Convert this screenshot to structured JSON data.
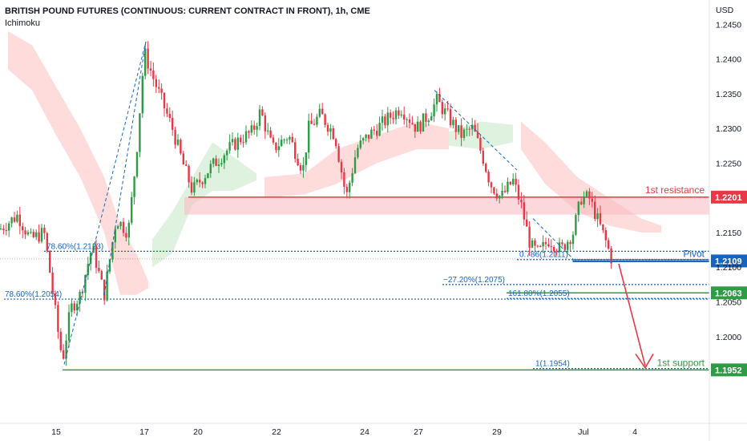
{
  "header": {
    "title": "BRITISH POUND FUTURES (CONTINUOUS: CURRENT CONTRACT IN FRONT), 1h, CME",
    "indicator": "Ichimoku"
  },
  "chart_data": {
    "type": "candlestick",
    "currency_label": "USD",
    "ylim": [
      1.1875,
      1.2485
    ],
    "y_ticks": [
      "1.2450",
      "1.2400",
      "1.2350",
      "1.2300",
      "1.2250",
      "1.2150",
      "1.2100",
      "1.2050",
      "1.2000"
    ],
    "x_ticks": [
      "15",
      "17",
      "20",
      "22",
      "24",
      "27",
      "29",
      "Jul",
      "4"
    ],
    "price_path": [
      [
        0,
        1.2155
      ],
      [
        22,
        1.2175
      ],
      [
        38,
        1.214
      ],
      [
        55,
        1.215
      ],
      [
        62,
        1.2095
      ],
      [
        72,
        1.201
      ],
      [
        78,
        1.1965
      ],
      [
        88,
        1.204
      ],
      [
        100,
        1.206
      ],
      [
        115,
        1.213
      ],
      [
        130,
        1.206
      ],
      [
        145,
        1.217
      ],
      [
        160,
        1.215
      ],
      [
        170,
        1.226
      ],
      [
        180,
        1.241
      ],
      [
        192,
        1.237
      ],
      [
        205,
        1.233
      ],
      [
        215,
        1.23
      ],
      [
        228,
        1.225
      ],
      [
        240,
        1.221
      ],
      [
        260,
        1.224
      ],
      [
        280,
        1.2265
      ],
      [
        300,
        1.2285
      ],
      [
        315,
        1.2295
      ],
      [
        325,
        1.2325
      ],
      [
        340,
        1.227
      ],
      [
        360,
        1.229
      ],
      [
        378,
        1.224
      ],
      [
        385,
        1.23
      ],
      [
        400,
        1.232
      ],
      [
        418,
        1.229
      ],
      [
        432,
        1.22
      ],
      [
        445,
        1.227
      ],
      [
        460,
        1.229
      ],
      [
        480,
        1.231
      ],
      [
        500,
        1.233
      ],
      [
        520,
        1.23
      ],
      [
        535,
        1.232
      ],
      [
        545,
        1.234
      ],
      [
        560,
        1.2315
      ],
      [
        575,
        1.229
      ],
      [
        590,
        1.23
      ],
      [
        602,
        1.226
      ],
      [
        612,
        1.222
      ],
      [
        625,
        1.22
      ],
      [
        640,
        1.2225
      ],
      [
        650,
        1.219
      ],
      [
        662,
        1.213
      ],
      [
        672,
        1.212
      ],
      [
        685,
        1.214
      ],
      [
        700,
        1.2125
      ],
      [
        715,
        1.215
      ],
      [
        725,
        1.22
      ],
      [
        735,
        1.22
      ],
      [
        745,
        1.217
      ],
      [
        755,
        1.214
      ],
      [
        763,
        1.2112
      ]
    ],
    "ichimoku_cloud_bearish": [
      [
        10,
        1.244,
        1.2385
      ],
      [
        40,
        1.242,
        1.2355
      ],
      [
        70,
        1.236,
        1.229
      ],
      [
        100,
        1.23,
        1.223
      ],
      [
        130,
        1.223,
        1.215
      ],
      [
        150,
        1.216,
        1.206
      ],
      [
        170,
        1.212,
        1.206
      ],
      [
        185,
        1.208,
        1.207
      ]
    ],
    "ichimoku_cloud_bullish": [
      [
        190,
        1.214,
        1.21
      ],
      [
        215,
        1.218,
        1.212
      ],
      [
        240,
        1.223,
        1.219
      ],
      [
        265,
        1.228,
        1.221
      ],
      [
        290,
        1.226,
        1.221
      ],
      [
        320,
        1.2235,
        1.2225
      ]
    ],
    "ichimoku_cloud_bearish_2": [
      [
        330,
        1.223,
        1.22
      ],
      [
        380,
        1.2235,
        1.2205
      ],
      [
        420,
        1.227,
        1.222
      ],
      [
        470,
        1.229,
        1.225
      ],
      [
        520,
        1.231,
        1.227
      ],
      [
        560,
        1.23,
        1.227
      ]
    ],
    "ichimoku_cloud_bullish_2": [
      [
        560,
        1.2295,
        1.2275
      ],
      [
        600,
        1.231,
        1.227
      ],
      [
        640,
        1.2305,
        1.228
      ]
    ],
    "ichimoku_cloud_bearish_3": [
      [
        650,
        1.231,
        1.227
      ],
      [
        680,
        1.228,
        1.222
      ],
      [
        720,
        1.223,
        1.218
      ],
      [
        760,
        1.22,
        1.216
      ],
      [
        800,
        1.217,
        1.215
      ],
      [
        825,
        1.216,
        1.215
      ]
    ],
    "resistance_zone": [
      1.2201,
      1.2185
    ],
    "levels": [
      {
        "key": "resistance",
        "value": 1.2201,
        "badge": "1.2201",
        "label": "1st resistance",
        "color": "#e83845",
        "x_start": 235
      },
      {
        "key": "pivot",
        "value": 1.2109,
        "badge": "1.2109",
        "label": "Pivot",
        "color": "#1565c0",
        "x_start": 715
      },
      {
        "key": "mid",
        "value": 1.2063,
        "badge": "1.2063",
        "label": "",
        "color": "#2e9c44",
        "x_start": 632
      },
      {
        "key": "support",
        "value": 1.1952,
        "badge": "1.1952",
        "label": "1st support",
        "color": "#2e9c44",
        "x_start": 78
      }
    ],
    "fib_annotations": [
      {
        "text": "78.60%(1.2123)",
        "value": 1.2123,
        "x_start": 55,
        "x_end": 885,
        "label_x": 58
      },
      {
        "text": "0.786(1.2111)",
        "value": 1.2111,
        "x_start": 645,
        "x_end": 885,
        "label_x": 648
      },
      {
        "text": "−27.20%(1.2075)",
        "value": 1.2075,
        "x_start": 552,
        "x_end": 885,
        "label_x": 553
      },
      {
        "text": "161.80%(1.2055)",
        "value": 1.2055,
        "x_start": 632,
        "x_end": 885,
        "label_x": 634
      },
      {
        "text": "78.60%(1.2054)",
        "value": 1.2054,
        "x_start": 5,
        "x_end": 885,
        "label_x": 6
      },
      {
        "text": "1(1.1954)",
        "value": 1.1954,
        "x_start": 665,
        "x_end": 885,
        "label_x": 668
      }
    ],
    "last_price_line": 1.2112
  },
  "colors": {
    "up": "#26a69a",
    "down": "#ef5350",
    "bull_candle": "#2e9c44",
    "bear_candle": "#e83845",
    "fib": "#1565c0",
    "arrow": "#e83845",
    "cloud_bear": "#ffd6d6",
    "cloud_bull": "#d9f0d9"
  }
}
